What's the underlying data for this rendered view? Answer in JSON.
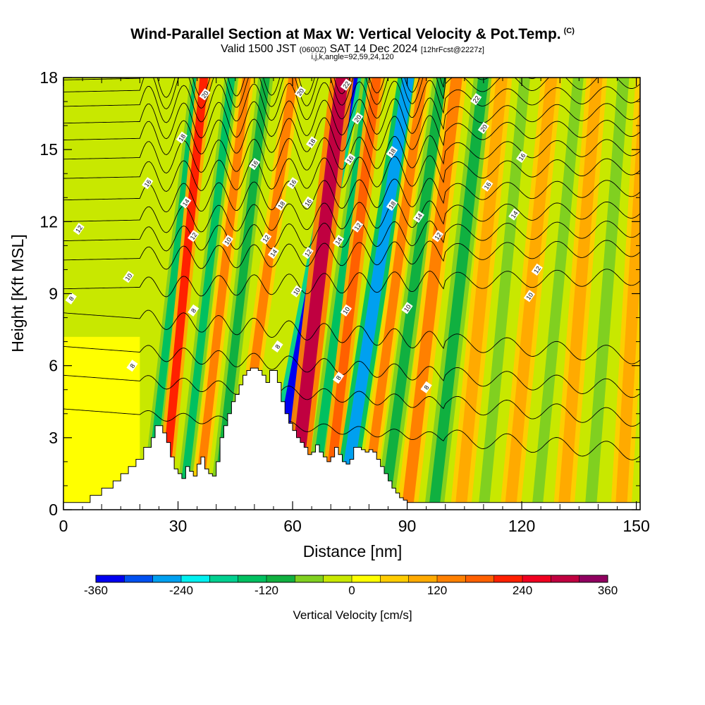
{
  "title": {
    "main": "Wind-Parallel Section at Max W: Vertical Velocity & Pot.Temp.",
    "copyright": "(C)",
    "subtitle_prefix": "Valid 1500 JST",
    "subtitle_utc": "(0600Z)",
    "subtitle_date": "SAT 14 Dec 2024",
    "subtitle_fcst": "[12hrFcst@2227z]",
    "params": "i,j,k,angle=92,59,24,120"
  },
  "chart_data": {
    "type": "heatmap",
    "xlabel": "Distance [nm]",
    "ylabel": "Height [Kft MSL]",
    "xlim": [
      0,
      151
    ],
    "ylim": [
      0,
      18
    ],
    "xticks": [
      0,
      30,
      60,
      90,
      120,
      150
    ],
    "yticks": [
      0,
      3,
      6,
      9,
      12,
      15,
      18
    ],
    "colorbar": {
      "title": "Vertical Velocity [cm/s]",
      "range": [
        -360,
        360
      ],
      "step": 40,
      "ticks": [
        -360,
        -240,
        -120,
        0,
        120,
        240,
        360
      ],
      "colors": [
        "#0000f0",
        "#0050f0",
        "#00a0f0",
        "#00f0f0",
        "#00d090",
        "#00c060",
        "#10b040",
        "#80d020",
        "#c8e800",
        "#ffff00",
        "#ffcc00",
        "#ffaa00",
        "#ff8000",
        "#ff6000",
        "#ff2000",
        "#f00020",
        "#c00040",
        "#900060"
      ]
    },
    "terrain_profile": {
      "x": [
        0,
        5,
        7,
        10,
        13,
        15,
        17,
        19,
        21,
        23,
        24,
        26,
        27,
        28,
        29,
        30,
        31,
        32,
        33,
        34,
        35,
        36,
        37,
        38,
        39,
        40,
        41,
        42,
        43,
        44,
        45,
        46,
        47,
        48,
        49,
        50,
        51,
        52,
        53,
        54,
        55,
        56,
        57,
        58,
        59,
        60,
        61,
        62,
        63,
        64,
        65,
        66,
        67,
        68,
        69,
        70,
        71,
        72,
        73,
        74,
        75,
        76,
        77,
        78,
        79,
        80,
        81,
        82,
        83,
        84,
        85,
        86,
        87,
        88,
        89,
        90,
        91,
        92,
        93,
        94,
        95,
        96,
        97,
        98,
        151
      ],
      "y": [
        0.3,
        0.3,
        0.6,
        0.9,
        1.2,
        1.5,
        1.8,
        2.1,
        2.6,
        3.0,
        3.5,
        3.2,
        2.8,
        2.2,
        1.7,
        1.5,
        1.3,
        1.8,
        1.6,
        1.4,
        1.9,
        2.2,
        1.7,
        1.5,
        1.4,
        2.0,
        3.0,
        3.5,
        4.0,
        4.5,
        4.8,
        5.2,
        5.6,
        5.8,
        5.9,
        5.9,
        5.8,
        5.6,
        5.3,
        5.8,
        5.8,
        5.3,
        4.5,
        4.0,
        3.6,
        3.3,
        3.0,
        2.8,
        2.6,
        2.3,
        2.4,
        2.7,
        2.4,
        2.2,
        2.0,
        2.2,
        2.6,
        2.3,
        2.0,
        1.9,
        2.1,
        2.6,
        2.6,
        2.5,
        2.4,
        2.5,
        2.4,
        2.1,
        1.8,
        1.5,
        1.2,
        0.9,
        0.7,
        0.5,
        0.4,
        0.3,
        0.3,
        0.3,
        0.3,
        0.3,
        0.3,
        0.3,
        0.3,
        0.3,
        0.3
      ]
    },
    "velocity_bands": [
      {
        "x0": 22,
        "tilt": 0.12,
        "width": 2.0,
        "value": -160
      },
      {
        "x0": 26,
        "tilt": 0.1,
        "width": 2.2,
        "value": 220
      },
      {
        "x0": 31,
        "tilt": 0.12,
        "width": 2.0,
        "value": -140
      },
      {
        "x0": 35,
        "tilt": 0.12,
        "width": 2.2,
        "value": 140
      },
      {
        "x0": 40,
        "tilt": 0.12,
        "width": 2.2,
        "value": -100
      },
      {
        "x0": 45,
        "tilt": 0.14,
        "width": 2.4,
        "value": 120
      },
      {
        "x0": 54,
        "tilt": 0.2,
        "width": 3.0,
        "value": -360
      },
      {
        "x0": 60,
        "tilt": 0.12,
        "width": 3.4,
        "value": 280
      },
      {
        "x0": 65,
        "tilt": 0.14,
        "width": 2.4,
        "value": -160
      },
      {
        "x0": 69,
        "tilt": 0.12,
        "width": 2.4,
        "value": 180
      },
      {
        "x0": 73,
        "tilt": 0.16,
        "width": 3.0,
        "value": -280
      },
      {
        "x0": 79,
        "tilt": 0.14,
        "width": 2.4,
        "value": 140
      },
      {
        "x0": 84,
        "tilt": 0.14,
        "width": 2.6,
        "value": -120
      },
      {
        "x0": 90,
        "tilt": 0.12,
        "width": 3.0,
        "value": 140
      },
      {
        "x0": 97,
        "tilt": 0.12,
        "width": 2.8,
        "value": -100
      },
      {
        "x0": 104,
        "tilt": 0.1,
        "width": 3.0,
        "value": 110
      },
      {
        "x0": 110,
        "tilt": 0.1,
        "width": 2.8,
        "value": -80
      },
      {
        "x0": 117,
        "tilt": 0.1,
        "width": 3.0,
        "value": 100
      },
      {
        "x0": 124,
        "tilt": 0.1,
        "width": 2.8,
        "value": -80
      },
      {
        "x0": 131,
        "tilt": 0.08,
        "width": 3.0,
        "value": 90
      },
      {
        "x0": 138,
        "tilt": 0.08,
        "width": 3.0,
        "value": -70
      },
      {
        "x0": 146,
        "tilt": 0.06,
        "width": 3.0,
        "value": 90
      }
    ],
    "isentropes": {
      "levels": [
        8,
        10,
        12,
        14,
        16,
        18,
        20,
        22
      ],
      "labels": [
        {
          "text": "8",
          "x": 2,
          "y": 8.8
        },
        {
          "text": "8",
          "x": 18,
          "y": 6.0
        },
        {
          "text": "8",
          "x": 34,
          "y": 8.3
        },
        {
          "text": "8",
          "x": 56,
          "y": 6.8
        },
        {
          "text": "8",
          "x": 72,
          "y": 5.5
        },
        {
          "text": "8",
          "x": 95,
          "y": 5.1
        },
        {
          "text": "10",
          "x": 17,
          "y": 9.7
        },
        {
          "text": "10",
          "x": 43,
          "y": 11.2
        },
        {
          "text": "10",
          "x": 61,
          "y": 9.1
        },
        {
          "text": "10",
          "x": 74,
          "y": 8.3
        },
        {
          "text": "10",
          "x": 90,
          "y": 8.4
        },
        {
          "text": "10",
          "x": 122,
          "y": 8.9
        },
        {
          "text": "12",
          "x": 4,
          "y": 11.7
        },
        {
          "text": "12",
          "x": 34,
          "y": 11.4
        },
        {
          "text": "12",
          "x": 53,
          "y": 11.3
        },
        {
          "text": "12",
          "x": 64,
          "y": 10.7
        },
        {
          "text": "12",
          "x": 77,
          "y": 11.8
        },
        {
          "text": "12",
          "x": 98,
          "y": 11.4
        },
        {
          "text": "12",
          "x": 124,
          "y": 10.0
        },
        {
          "text": "14",
          "x": 32,
          "y": 12.8
        },
        {
          "text": "14",
          "x": 55,
          "y": 10.7
        },
        {
          "text": "14",
          "x": 72,
          "y": 11.2
        },
        {
          "text": "14",
          "x": 93,
          "y": 12.2
        },
        {
          "text": "14",
          "x": 118,
          "y": 12.3
        },
        {
          "text": "16",
          "x": 22,
          "y": 13.6
        },
        {
          "text": "16",
          "x": 50,
          "y": 14.4
        },
        {
          "text": "16",
          "x": 60,
          "y": 13.6
        },
        {
          "text": "16",
          "x": 64,
          "y": 12.8
        },
        {
          "text": "16",
          "x": 75,
          "y": 14.6
        },
        {
          "text": "16",
          "x": 111,
          "y": 13.5
        },
        {
          "text": "16",
          "x": 120,
          "y": 14.7
        },
        {
          "text": "18",
          "x": 31,
          "y": 15.5
        },
        {
          "text": "18",
          "x": 57,
          "y": 12.7
        },
        {
          "text": "18",
          "x": 65,
          "y": 15.3
        },
        {
          "text": "18",
          "x": 86,
          "y": 14.9
        },
        {
          "text": "18",
          "x": 86,
          "y": 12.7
        },
        {
          "text": "20",
          "x": 37,
          "y": 17.3
        },
        {
          "text": "20",
          "x": 62,
          "y": 17.4
        },
        {
          "text": "20",
          "x": 77,
          "y": 16.3
        },
        {
          "text": "20",
          "x": 110,
          "y": 15.9
        },
        {
          "text": "22",
          "x": 74,
          "y": 17.7
        },
        {
          "text": "22",
          "x": 108,
          "y": 17.1
        }
      ]
    }
  }
}
